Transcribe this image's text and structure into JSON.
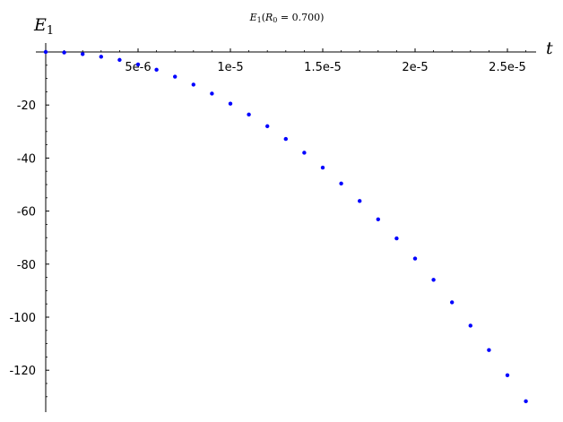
{
  "chart_data": {
    "type": "scatter",
    "title": "E_1(R_0 = 0.700)",
    "title_parts": {
      "main": "E",
      "main_sub": "1",
      "open": "(",
      "var": "R",
      "var_sub": "0",
      "equals": " = ",
      "value": "0.700",
      "close": ")"
    },
    "xlabel": "t",
    "ylabel": "E",
    "ylabel_sub": "1",
    "xlim": [
      0,
      2.65e-05
    ],
    "ylim": [
      -134,
      0.5
    ],
    "grid": false,
    "x_ticks": [
      {
        "value": 5e-06,
        "label": "5e-6"
      },
      {
        "value": 1e-05,
        "label": "1e-5"
      },
      {
        "value": 1.5e-05,
        "label": "1.5e-5"
      },
      {
        "value": 2e-05,
        "label": "2e-5"
      },
      {
        "value": 2.5e-05,
        "label": "2.5e-5"
      }
    ],
    "y_ticks": [
      {
        "value": -20,
        "label": "-20"
      },
      {
        "value": -40,
        "label": "-40"
      },
      {
        "value": -60,
        "label": "-60"
      },
      {
        "value": -80,
        "label": "-80"
      },
      {
        "value": -100,
        "label": "-100"
      },
      {
        "value": -120,
        "label": "-120"
      }
    ],
    "point_color": "#0000ff",
    "series": [
      {
        "x": [
          0,
          1e-06,
          2e-06,
          3e-06,
          4e-06,
          5e-06,
          6e-06,
          7e-06,
          8e-06,
          9e-06,
          1e-05,
          1.1e-05,
          1.2e-05,
          1.3e-05,
          1.4e-05,
          1.5e-05,
          1.6e-05,
          1.7e-05,
          1.8e-05,
          1.9e-05,
          2e-05,
          2.1e-05,
          2.2e-05,
          2.3e-05,
          2.4e-05,
          2.5e-05,
          2.6e-05
        ],
        "y": [
          0,
          -0.2,
          -0.8,
          -1.8,
          -3.0,
          -4.7,
          -6.7,
          -9.3,
          -12.3,
          -15.7,
          -19.5,
          -23.6,
          -28.0,
          -32.8,
          -38.0,
          -43.6,
          -49.6,
          -56.2,
          -63.1,
          -70.3,
          -77.9,
          -85.9,
          -94.4,
          -103.2,
          -112.4,
          -121.9,
          -131.7
        ]
      }
    ]
  }
}
